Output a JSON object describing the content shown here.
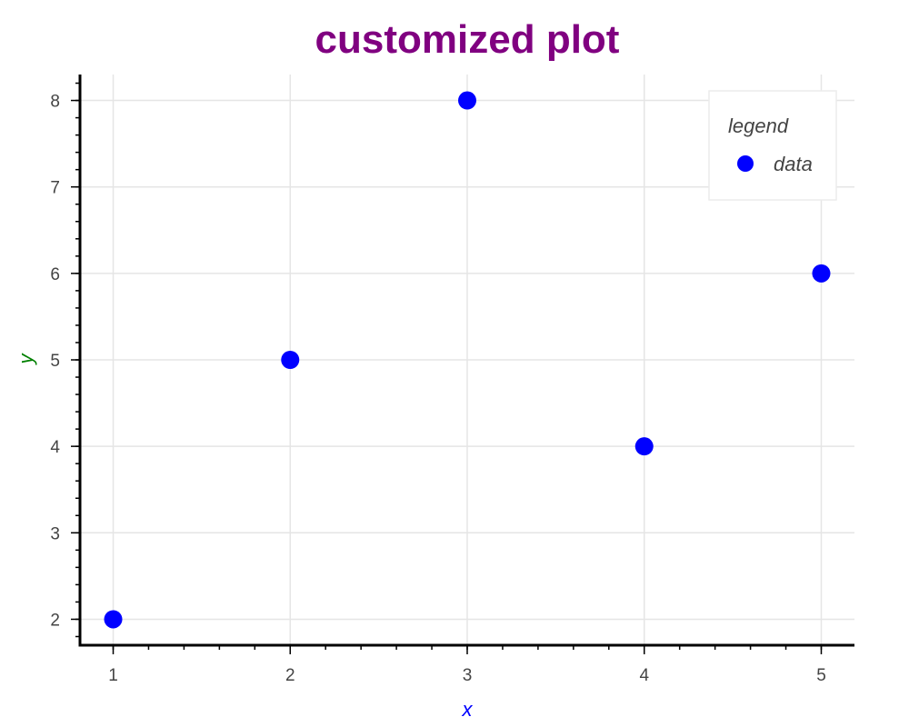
{
  "chart_data": {
    "type": "scatter",
    "title": "customized plot",
    "xlabel": "x",
    "ylabel": "y",
    "x": [
      1,
      2,
      3,
      4,
      5
    ],
    "series": [
      {
        "name": "data",
        "values": [
          2,
          5,
          8,
          4,
          6
        ]
      }
    ],
    "xlim": [
      0.8125,
      5.1875
    ],
    "ylim": [
      1.7,
      8.3
    ],
    "xticks": [
      "1",
      "2",
      "3",
      "4",
      "5"
    ],
    "yticks": [
      "2",
      "3",
      "4",
      "5",
      "6",
      "7",
      "8"
    ],
    "grid": true,
    "legend": {
      "title": "legend",
      "placement": "top-right"
    },
    "colors": {
      "title": "#800080",
      "xlabel": "#0000ff",
      "ylabel": "#008000",
      "marker": "#0000ff",
      "grid": "#e5e5e5",
      "axis": "#000000"
    }
  }
}
